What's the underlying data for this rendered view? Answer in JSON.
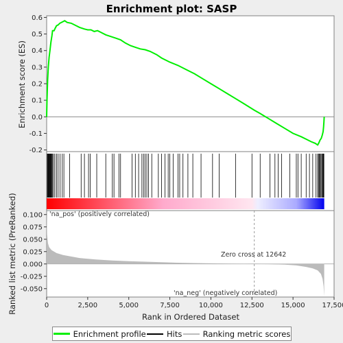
{
  "chart_data": {
    "type": "line",
    "title": "Enrichment plot: SASP",
    "xlabel": "Rank in Ordered Dataset",
    "ylabel_top": "Enrichment score (ES)",
    "ylabel_bottom": "Ranked list metric (PreRanked)",
    "x_ticks": [
      "0",
      "2,500",
      "5,000",
      "7,500",
      "10,000",
      "12,500",
      "15,000",
      "17,500"
    ],
    "x_tick_values": [
      0,
      2500,
      5000,
      7500,
      10000,
      12500,
      15000,
      17500
    ],
    "xlim": [
      0,
      17500
    ],
    "es_ylim": [
      -0.21,
      0.61
    ],
    "es_ticks": [
      "0.6",
      "0.5",
      "0.4",
      "0.3",
      "0.2",
      "0.1",
      "0.0",
      "-0.1",
      "-0.2"
    ],
    "es_tick_values": [
      0.6,
      0.5,
      0.4,
      0.3,
      0.2,
      0.1,
      0.0,
      -0.1,
      -0.2
    ],
    "metric_ylim": [
      -0.067,
      0.108
    ],
    "metric_ticks": [
      "0.100",
      "0.075",
      "0.050",
      "0.025",
      "0.000",
      "-0.025",
      "-0.050"
    ],
    "metric_tick_values": [
      0.1,
      0.075,
      0.05,
      0.025,
      0.0,
      -0.025,
      -0.05
    ],
    "n_genes": 16900,
    "zero_cross": 12642,
    "zero_cross_label": "Zero cross at 12642",
    "pos_label": "'na_pos' (positively correlated)",
    "neg_label": "'na_neg' (negatively correlated)",
    "enrichment_profile": [
      [
        0,
        0.0
      ],
      [
        20,
        0.1
      ],
      [
        60,
        0.22
      ],
      [
        100,
        0.3
      ],
      [
        150,
        0.36
      ],
      [
        200,
        0.4
      ],
      [
        260,
        0.45
      ],
      [
        320,
        0.49
      ],
      [
        360,
        0.52
      ],
      [
        450,
        0.52
      ],
      [
        520,
        0.535
      ],
      [
        600,
        0.55
      ],
      [
        700,
        0.555
      ],
      [
        800,
        0.565
      ],
      [
        900,
        0.57
      ],
      [
        1000,
        0.575
      ],
      [
        1100,
        0.58
      ],
      [
        1250,
        0.57
      ],
      [
        1500,
        0.565
      ],
      [
        1800,
        0.55
      ],
      [
        2000,
        0.54
      ],
      [
        2300,
        0.53
      ],
      [
        2500,
        0.525
      ],
      [
        2700,
        0.525
      ],
      [
        2900,
        0.515
      ],
      [
        3100,
        0.52
      ],
      [
        3300,
        0.51
      ],
      [
        3600,
        0.495
      ],
      [
        3900,
        0.485
      ],
      [
        4200,
        0.475
      ],
      [
        4500,
        0.465
      ],
      [
        4800,
        0.445
      ],
      [
        5100,
        0.43
      ],
      [
        5400,
        0.42
      ],
      [
        5700,
        0.41
      ],
      [
        6000,
        0.405
      ],
      [
        6300,
        0.395
      ],
      [
        6700,
        0.375
      ],
      [
        7000,
        0.355
      ],
      [
        7500,
        0.33
      ],
      [
        8000,
        0.31
      ],
      [
        8500,
        0.285
      ],
      [
        9000,
        0.26
      ],
      [
        9500,
        0.23
      ],
      [
        10000,
        0.2
      ],
      [
        10500,
        0.17
      ],
      [
        11000,
        0.14
      ],
      [
        11500,
        0.11
      ],
      [
        12000,
        0.08
      ],
      [
        12642,
        0.04
      ],
      [
        13000,
        0.02
      ],
      [
        13500,
        -0.01
      ],
      [
        14000,
        -0.04
      ],
      [
        14500,
        -0.07
      ],
      [
        15000,
        -0.1
      ],
      [
        15500,
        -0.12
      ],
      [
        15800,
        -0.135
      ],
      [
        16100,
        -0.15
      ],
      [
        16350,
        -0.16
      ],
      [
        16500,
        -0.17
      ],
      [
        16560,
        -0.16
      ],
      [
        16650,
        -0.14
      ],
      [
        16720,
        -0.13
      ],
      [
        16780,
        -0.11
      ],
      [
        16830,
        -0.09
      ],
      [
        16860,
        -0.06
      ],
      [
        16880,
        -0.03
      ],
      [
        16900,
        0.0
      ]
    ],
    "hits": [
      40,
      70,
      100,
      130,
      160,
      190,
      220,
      250,
      280,
      320,
      360,
      420,
      500,
      600,
      700,
      820,
      950,
      1050,
      1400,
      2100,
      2300,
      2550,
      2650,
      3050,
      3600,
      4000,
      4100,
      4400,
      4500,
      5200,
      5400,
      5600,
      5800,
      5900,
      6000,
      6100,
      6200,
      6400,
      6800,
      7000,
      7200,
      7400,
      7500,
      7700,
      8000,
      8100,
      8300,
      8600,
      8900,
      9400,
      10100,
      10500,
      11500,
      12500,
      13000,
      13600,
      13900,
      14100,
      14300,
      14800,
      15200,
      15300,
      15500,
      15800,
      16000,
      16200,
      16400,
      16500,
      16550,
      16600,
      16650,
      16700,
      16750,
      16800,
      16830,
      16860,
      16880
    ],
    "metric_profile": [
      [
        0,
        0.108
      ],
      [
        30,
        0.06
      ],
      [
        80,
        0.042
      ],
      [
        150,
        0.034
      ],
      [
        300,
        0.028
      ],
      [
        600,
        0.022
      ],
      [
        1000,
        0.018
      ],
      [
        2000,
        0.012
      ],
      [
        3000,
        0.009
      ],
      [
        4000,
        0.007
      ],
      [
        5000,
        0.0055
      ],
      [
        6000,
        0.0045
      ],
      [
        7000,
        0.0035
      ],
      [
        8000,
        0.0025
      ],
      [
        9000,
        0.0018
      ],
      [
        10000,
        0.0012
      ],
      [
        11000,
        0.0007
      ],
      [
        12000,
        0.0003
      ],
      [
        12642,
        0.0
      ],
      [
        13500,
        -0.0005
      ],
      [
        14500,
        -0.0015
      ],
      [
        15200,
        -0.003
      ],
      [
        15800,
        -0.006
      ],
      [
        16200,
        -0.009
      ],
      [
        16500,
        -0.013
      ],
      [
        16700,
        -0.02
      ],
      [
        16800,
        -0.03
      ],
      [
        16860,
        -0.045
      ],
      [
        16900,
        -0.065
      ]
    ],
    "colors": {
      "profile": "#00ee00",
      "hits": "#000000",
      "metric_fill": "#bbbbbb",
      "pos_text": "#cc0000",
      "neg_text": "#0000cc"
    },
    "legend": [
      {
        "label": "Enrichment profile",
        "kind": "profile"
      },
      {
        "label": "Hits",
        "kind": "hits"
      },
      {
        "label": "Ranking metric scores",
        "kind": "metric"
      }
    ]
  }
}
